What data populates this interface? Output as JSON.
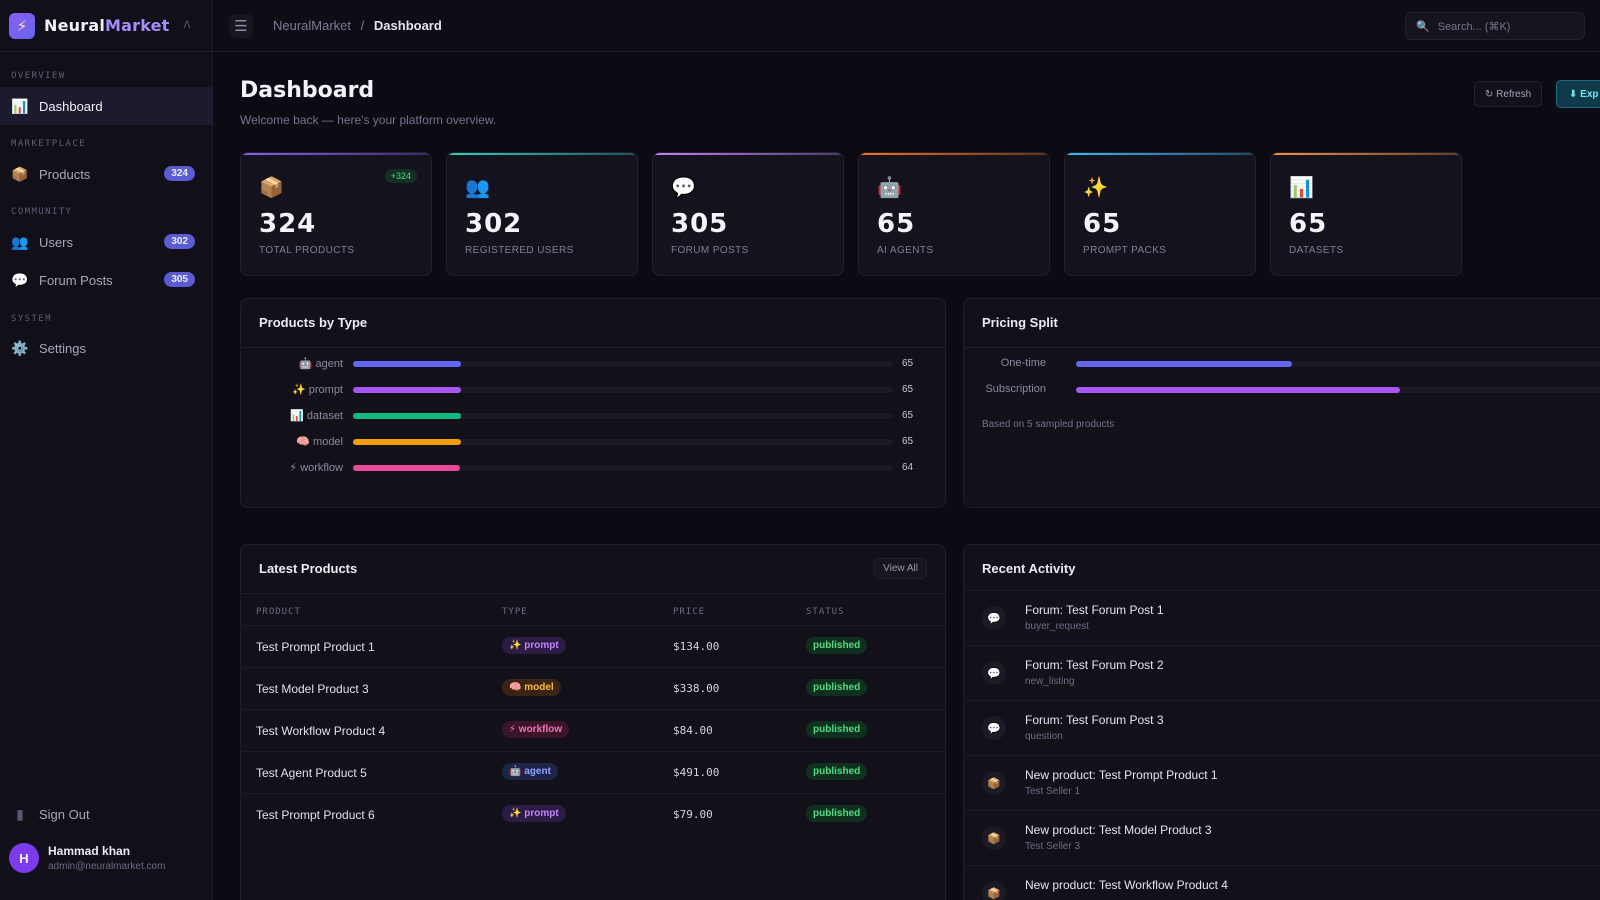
{
  "brand": {
    "name_a": "Neural",
    "name_b": "Market",
    "logo_glyph": "⚡",
    "collapse": "ᐱ"
  },
  "sidebar": {
    "sections": [
      "OVERVIEW",
      "MARKETPLACE",
      "COMMUNITY",
      "SYSTEM"
    ],
    "items": [
      {
        "label": "Dashboard",
        "icon": "📊",
        "icon_name": "chart-icon"
      },
      {
        "label": "Products",
        "icon": "📦",
        "icon_name": "package-icon",
        "badge": "324"
      },
      {
        "label": "Users",
        "icon": "👥",
        "icon_name": "users-icon",
        "badge": "302"
      },
      {
        "label": "Forum Posts",
        "icon": "💬",
        "icon_name": "chat-icon",
        "badge": "305"
      },
      {
        "label": "Settings",
        "icon": "⚙️",
        "icon_name": "gear-icon"
      }
    ],
    "sign_out": {
      "label": "Sign Out",
      "icon": "▮"
    },
    "user": {
      "initial": "H",
      "name": "Hammad khan",
      "email": "admin@neuralmarket.com"
    }
  },
  "topbar": {
    "menu_glyph": "☰",
    "breadcrumb": {
      "root": "NeuralMarket",
      "sep": "/",
      "current": "Dashboard"
    },
    "search_placeholder": "Search... (⌘K)",
    "search_icon": "🔍"
  },
  "header": {
    "title": "Dashboard",
    "subtitle": "Welcome back — here's your platform overview.",
    "refresh_label": "↻ Refresh",
    "export_label": "⬇ Exp"
  },
  "stats": [
    {
      "icon": "📦",
      "value": "324",
      "label": "TOTAL PRODUCTS",
      "pill": "+324",
      "color": "#8b5cf6"
    },
    {
      "icon": "👥",
      "value": "302",
      "label": "REGISTERED USERS",
      "color": "#2dd4bf"
    },
    {
      "icon": "💬",
      "value": "305",
      "label": "FORUM POSTS",
      "color": "#c084fc"
    },
    {
      "icon": "🤖",
      "value": "65",
      "label": "AI AGENTS",
      "color": "#f97316"
    },
    {
      "icon": "✨",
      "value": "65",
      "label": "PROMPT PACKS",
      "color": "#38bdf8"
    },
    {
      "icon": "📊",
      "value": "65",
      "label": "DATASETS",
      "color": "#fb923c"
    }
  ],
  "products_by_type": {
    "title": "Products by Type",
    "max": 324,
    "rows": [
      {
        "label": "🤖 agent",
        "value": 65,
        "color": "#6366f1"
      },
      {
        "label": "✨ prompt",
        "value": 65,
        "color": "#a855f7"
      },
      {
        "label": "📊 dataset",
        "value": 65,
        "color": "#10b981"
      },
      {
        "label": "🧠 model",
        "value": 65,
        "color": "#f59e0b"
      },
      {
        "label": "⚡ workflow",
        "value": 64,
        "color": "#ec4899"
      }
    ]
  },
  "pricing_split": {
    "title": "Pricing Split",
    "rows": [
      {
        "label": "One-time",
        "fraction": 0.4,
        "color": "#6366f1"
      },
      {
        "label": "Subscription",
        "fraction": 0.6,
        "color": "#a855f7"
      }
    ],
    "note": "Based on 5 sampled products"
  },
  "latest_products": {
    "title": "Latest Products",
    "view_all": "View All",
    "columns": [
      "PRODUCT",
      "TYPE",
      "PRICE",
      "STATUS"
    ],
    "rows": [
      {
        "product": "Test Prompt Product 1",
        "type": "✨ prompt",
        "type_key": "prompt",
        "price": "$134.00",
        "status": "published"
      },
      {
        "product": "Test Model Product 3",
        "type": "🧠 model",
        "type_key": "model",
        "price": "$338.00",
        "status": "published"
      },
      {
        "product": "Test Workflow Product 4",
        "type": "⚡ workflow",
        "type_key": "workflow",
        "price": "$84.00",
        "status": "published"
      },
      {
        "product": "Test Agent Product 5",
        "type": "🤖 agent",
        "type_key": "agent",
        "price": "$491.00",
        "status": "published"
      },
      {
        "product": "Test Prompt Product 6",
        "type": "✨ prompt",
        "type_key": "prompt",
        "price": "$79.00",
        "status": "published"
      }
    ]
  },
  "recent_activity": {
    "title": "Recent Activity",
    "items": [
      {
        "icon": "💬",
        "title": "Forum: Test Forum Post 1",
        "sub": "buyer_request"
      },
      {
        "icon": "💬",
        "title": "Forum: Test Forum Post 2",
        "sub": "new_listing"
      },
      {
        "icon": "💬",
        "title": "Forum: Test Forum Post 3",
        "sub": "question"
      },
      {
        "icon": "📦",
        "title": "New product: Test Prompt Product 1",
        "sub": "Test Seller 1"
      },
      {
        "icon": "📦",
        "title": "New product: Test Model Product 3",
        "sub": "Test Seller 3"
      },
      {
        "icon": "📦",
        "title": "New product: Test Workflow Product 4",
        "sub": ""
      }
    ]
  }
}
